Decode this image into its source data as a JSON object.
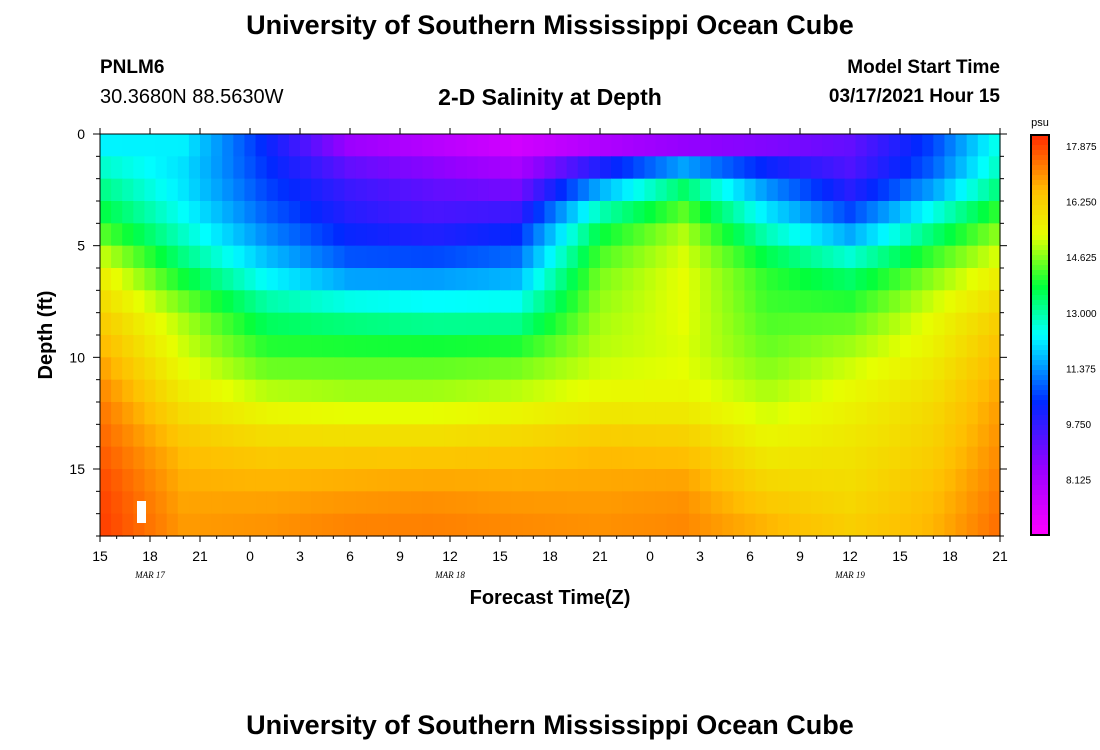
{
  "header": {
    "title": "University of Southern Mississippi Ocean Cube",
    "station": "PNLM6",
    "coordinates": "30.3680N 88.5630W",
    "chart_title": "2-D Salinity at Depth",
    "model_start_label": "Model Start Time",
    "model_start_value": "03/17/2021 Hour 15"
  },
  "footer": {
    "title": "University of Southern Mississippi Ocean Cube"
  },
  "chart_data": {
    "type": "heatmap",
    "title": "2-D Salinity at Depth",
    "xlabel": "Forecast Time(Z)",
    "ylabel": "Depth (ft)",
    "x_tick_labels": [
      "15",
      "18",
      "21",
      "0",
      "3",
      "6",
      "9",
      "12",
      "15",
      "18",
      "21",
      "0",
      "3",
      "6",
      "9",
      "12",
      "15",
      "18",
      "21"
    ],
    "x_date_labels": [
      {
        "label": "MAR 17",
        "hour_index": 3
      },
      {
        "label": "MAR 18",
        "hour_index": 21
      },
      {
        "label": "MAR 19",
        "hour_index": 45
      }
    ],
    "x_range_hours": [
      0,
      54
    ],
    "y_tick_labels": [
      "0",
      "5",
      "10",
      "15"
    ],
    "y_ticks": [
      0,
      5,
      10,
      15
    ],
    "y_range_ft": [
      0,
      18
    ],
    "colorbar": {
      "unit": "psu",
      "ticks": [
        "17.875",
        "16.250",
        "14.625",
        "13.000",
        "11.375",
        "9.750",
        "8.125"
      ],
      "min": 6.5,
      "max": 18.2
    },
    "depth_levels_ft": [
      0,
      2,
      4,
      6,
      8,
      10,
      12,
      14,
      16,
      18
    ],
    "salinity_psu": [
      [
        12.0,
        12.3,
        10.2,
        8.0,
        7.5,
        7.0,
        7.0,
        7.0,
        8.0,
        9.0,
        10.5,
        12.5
      ],
      [
        13.0,
        12.0,
        10.5,
        9.5,
        9.0,
        8.5,
        11.0,
        13.0,
        11.0,
        9.5,
        11.0,
        13.0
      ],
      [
        14.0,
        12.5,
        11.0,
        10.0,
        9.6,
        10.0,
        13.5,
        14.8,
        12.5,
        11.0,
        13.0,
        14.5
      ],
      [
        15.5,
        13.5,
        12.0,
        11.0,
        11.0,
        11.3,
        14.5,
        15.3,
        14.0,
        13.2,
        14.5,
        15.5
      ],
      [
        16.2,
        14.8,
        13.3,
        13.0,
        12.8,
        12.8,
        14.8,
        15.3,
        14.2,
        14.2,
        15.3,
        16.2
      ],
      [
        16.8,
        15.2,
        14.2,
        14.2,
        14.2,
        14.3,
        15.0,
        15.2,
        14.5,
        15.0,
        15.6,
        16.6
      ],
      [
        17.3,
        15.8,
        15.2,
        15.0,
        15.0,
        15.2,
        15.5,
        15.5,
        15.0,
        15.5,
        16.0,
        16.9
      ],
      [
        17.6,
        16.5,
        16.2,
        16.2,
        16.2,
        16.3,
        16.5,
        16.4,
        15.6,
        15.8,
        16.2,
        17.1
      ],
      [
        17.9,
        16.8,
        16.8,
        16.9,
        17.0,
        16.9,
        16.9,
        17.0,
        16.2,
        16.0,
        16.5,
        17.3
      ],
      [
        18.0,
        17.0,
        17.1,
        17.3,
        17.3,
        17.2,
        17.1,
        17.2,
        16.8,
        16.3,
        16.7,
        17.5
      ]
    ],
    "salinity_time_hours": [
      0,
      5,
      10,
      15,
      20,
      25,
      30,
      35,
      40,
      45,
      50,
      54
    ]
  }
}
